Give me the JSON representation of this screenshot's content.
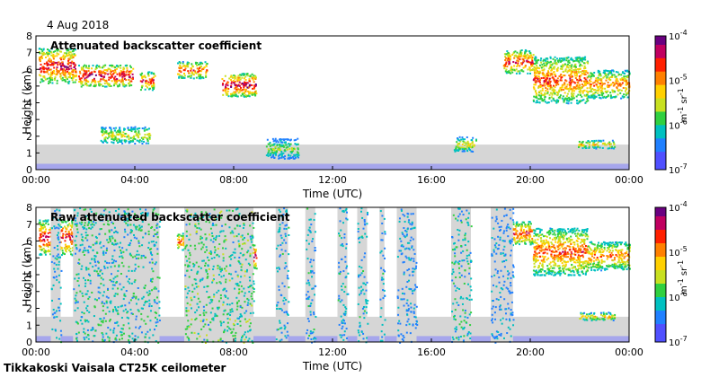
{
  "date_label": "4 Aug 2018",
  "footer_label": "Tikkakoski Vaisala CT25K ceilometer",
  "colors": {
    "no_signal_gray": "#d6d6d6",
    "frame": "#000000",
    "background": "#ffffff",
    "colorscale": [
      "#ffffff",
      "#5050ff",
      "#2080ff",
      "#00c0c0",
      "#30d040",
      "#c8e020",
      "#ffd000",
      "#ff8000",
      "#ff2000",
      "#c00060",
      "#6a0080"
    ]
  },
  "chart_data": [
    {
      "type": "heatmap",
      "panel": "top",
      "title": "Attenuated backscatter coefficient",
      "xlabel": "Time (UTC)",
      "ylabel": "Height (km)",
      "x_ticks": [
        "00:00",
        "04:00",
        "08:00",
        "12:00",
        "16:00",
        "20:00",
        "00:00"
      ],
      "y_ticks": [
        "0",
        "1",
        "2",
        "3",
        "4",
        "5",
        "6",
        "7",
        "8"
      ],
      "xlim_hours": [
        0,
        24
      ],
      "ylim_km": [
        0,
        8
      ],
      "colorbar": {
        "scale": "log",
        "range": [
          1e-07,
          0.0001
        ],
        "tick_labels": [
          "10",
          "10",
          "10",
          "10"
        ],
        "tick_exponents": [
          "-4",
          "-5",
          "-6",
          "-7"
        ],
        "unit": "m",
        "unit_exp1": "-1",
        "unit_mid": "sr",
        "unit_exp2": "-1"
      },
      "features": [
        {
          "kind": "cloud",
          "t0": 0.1,
          "t1": 1.6,
          "h0": 5.2,
          "h1": 7.3,
          "level": 0.85
        },
        {
          "kind": "cloud",
          "t0": 1.7,
          "t1": 3.9,
          "h0": 5.0,
          "h1": 6.3,
          "level": 0.9
        },
        {
          "kind": "cloud",
          "t0": 4.2,
          "t1": 4.8,
          "h0": 4.8,
          "h1": 5.9,
          "level": 0.8
        },
        {
          "kind": "cloud",
          "t0": 5.7,
          "t1": 6.9,
          "h0": 5.5,
          "h1": 6.5,
          "level": 0.75
        },
        {
          "kind": "cloud",
          "t0": 7.5,
          "t1": 8.9,
          "h0": 4.4,
          "h1": 5.8,
          "level": 0.9
        },
        {
          "kind": "cloud",
          "t0": 18.9,
          "t1": 20.1,
          "h0": 5.8,
          "h1": 7.2,
          "level": 0.8
        },
        {
          "kind": "cloud",
          "t0": 20.1,
          "t1": 22.3,
          "h0": 4.0,
          "h1": 6.8,
          "level": 0.75
        },
        {
          "kind": "cloud",
          "t0": 22.3,
          "t1": 24.0,
          "h0": 4.3,
          "h1": 6.0,
          "level": 0.7
        },
        {
          "kind": "cloud",
          "t0": 2.6,
          "t1": 4.6,
          "h0": 1.6,
          "h1": 2.6,
          "level": 0.55
        },
        {
          "kind": "cloud",
          "t0": 21.9,
          "t1": 23.4,
          "h0": 1.3,
          "h1": 1.8,
          "level": 0.6
        },
        {
          "kind": "cloud",
          "t0": 16.9,
          "t1": 17.8,
          "h0": 1.1,
          "h1": 2.0,
          "level": 0.55
        },
        {
          "kind": "cloud",
          "t0": 9.3,
          "t1": 10.6,
          "h0": 0.7,
          "h1": 1.9,
          "level": 0.45
        }
      ]
    },
    {
      "type": "heatmap",
      "panel": "bottom",
      "title": "Raw attenuated backscatter coefficient",
      "xlabel": "Time (UTC)",
      "ylabel": "Height (km)",
      "x_ticks": [
        "00:00",
        "04:00",
        "08:00",
        "12:00",
        "16:00",
        "20:00",
        "00:00"
      ],
      "y_ticks": [
        "0",
        "1",
        "2",
        "3",
        "4",
        "5",
        "6",
        "7",
        "8"
      ],
      "xlim_hours": [
        0,
        24
      ],
      "ylim_km": [
        0,
        8
      ],
      "colorbar": {
        "scale": "log",
        "range": [
          1e-07,
          0.0001
        ],
        "tick_labels": [
          "10",
          "10",
          "10",
          "10"
        ],
        "tick_exponents": [
          "-4",
          "-5",
          "-6",
          "-7"
        ],
        "unit": "m",
        "unit_exp1": "-1",
        "unit_mid": "sr",
        "unit_exp2": "-1"
      },
      "features": [
        {
          "kind": "cloud",
          "t0": 0.1,
          "t1": 1.6,
          "h0": 5.2,
          "h1": 7.3,
          "level": 0.85
        },
        {
          "kind": "cloud",
          "t0": 1.7,
          "t1": 3.9,
          "h0": 5.0,
          "h1": 6.3,
          "level": 0.9
        },
        {
          "kind": "cloud",
          "t0": 4.2,
          "t1": 4.8,
          "h0": 4.8,
          "h1": 5.9,
          "level": 0.8
        },
        {
          "kind": "cloud",
          "t0": 5.7,
          "t1": 6.9,
          "h0": 5.5,
          "h1": 6.5,
          "level": 0.75
        },
        {
          "kind": "cloud",
          "t0": 7.5,
          "t1": 8.9,
          "h0": 4.4,
          "h1": 5.8,
          "level": 0.9
        },
        {
          "kind": "cloud",
          "t0": 18.9,
          "t1": 20.1,
          "h0": 5.8,
          "h1": 7.2,
          "level": 0.8
        },
        {
          "kind": "cloud",
          "t0": 20.1,
          "t1": 22.3,
          "h0": 4.0,
          "h1": 6.8,
          "level": 0.75
        },
        {
          "kind": "cloud",
          "t0": 22.3,
          "t1": 24.0,
          "h0": 4.3,
          "h1": 6.0,
          "level": 0.7
        },
        {
          "kind": "cloud",
          "t0": 2.6,
          "t1": 4.6,
          "h0": 1.6,
          "h1": 2.6,
          "level": 0.55
        },
        {
          "kind": "cloud",
          "t0": 21.9,
          "t1": 23.4,
          "h0": 1.3,
          "h1": 1.8,
          "level": 0.6
        },
        {
          "kind": "noise_band",
          "t0": 0.6,
          "t1": 1.0,
          "level": 0.3
        },
        {
          "kind": "noise_band",
          "t0": 1.5,
          "t1": 5.0,
          "level": 0.35
        },
        {
          "kind": "noise_band",
          "t0": 6.0,
          "t1": 8.8,
          "level": 0.4
        },
        {
          "kind": "noise_band",
          "t0": 9.7,
          "t1": 10.2,
          "level": 0.3
        },
        {
          "kind": "noise_band",
          "t0": 10.9,
          "t1": 11.3,
          "level": 0.3
        },
        {
          "kind": "noise_band",
          "t0": 12.2,
          "t1": 12.6,
          "level": 0.3
        },
        {
          "kind": "noise_band",
          "t0": 13.0,
          "t1": 13.4,
          "level": 0.3
        },
        {
          "kind": "noise_band",
          "t0": 13.9,
          "t1": 14.1,
          "level": 0.3
        },
        {
          "kind": "noise_band",
          "t0": 14.6,
          "t1": 15.4,
          "level": 0.25
        },
        {
          "kind": "noise_band",
          "t0": 16.8,
          "t1": 17.6,
          "level": 0.35
        },
        {
          "kind": "noise_band",
          "t0": 18.4,
          "t1": 19.3,
          "level": 0.25
        }
      ]
    }
  ]
}
